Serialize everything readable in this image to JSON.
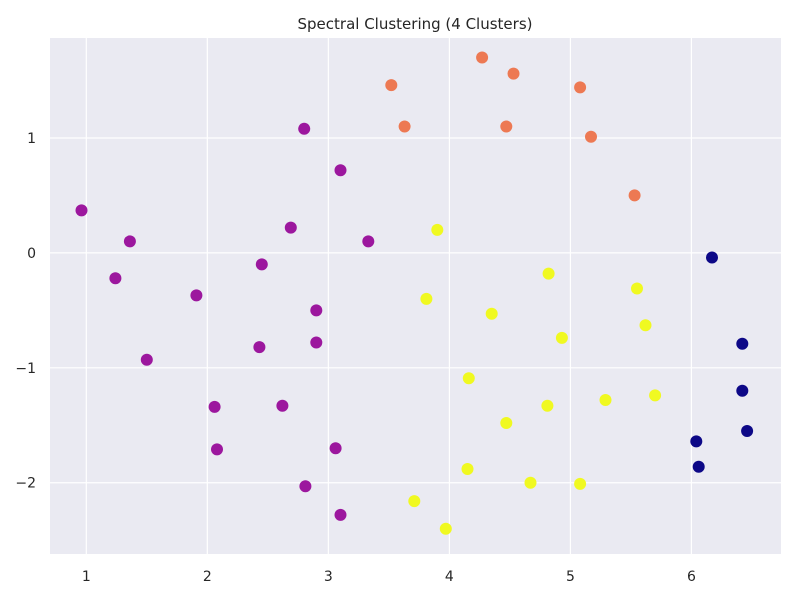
{
  "chart_data": {
    "type": "scatter",
    "title": "Spectral Clustering (4 Clusters)",
    "xlabel": "",
    "ylabel": "",
    "xlim": [
      0.7,
      6.74
    ],
    "ylim": [
      -2.62,
      1.87
    ],
    "x_ticks": [
      1,
      2,
      3,
      4,
      5,
      6
    ],
    "y_ticks": [
      1,
      0,
      -1,
      -2
    ],
    "grid": true,
    "legend": "none",
    "background": "#eaeaf2",
    "grid_color": "#ffffff",
    "series": [
      {
        "color": "#0d0887",
        "points": [
          [
            6.17,
            -0.04
          ],
          [
            6.42,
            -0.79
          ],
          [
            6.42,
            -1.2
          ],
          [
            6.46,
            -1.55
          ],
          [
            6.04,
            -1.64
          ],
          [
            6.06,
            -1.86
          ]
        ]
      },
      {
        "color": "#9c179e",
        "points": [
          [
            0.96,
            0.37
          ],
          [
            1.36,
            0.1
          ],
          [
            1.24,
            -0.22
          ],
          [
            1.5,
            -0.93
          ],
          [
            2.8,
            1.08
          ],
          [
            3.1,
            0.72
          ],
          [
            2.69,
            0.22
          ],
          [
            3.33,
            0.1
          ],
          [
            2.45,
            -0.1
          ],
          [
            1.91,
            -0.37
          ],
          [
            2.9,
            -0.5
          ],
          [
            2.43,
            -0.82
          ],
          [
            2.9,
            -0.78
          ],
          [
            2.06,
            -1.34
          ],
          [
            2.62,
            -1.33
          ],
          [
            2.08,
            -1.71
          ],
          [
            3.06,
            -1.7
          ],
          [
            2.81,
            -2.03
          ],
          [
            3.1,
            -2.28
          ]
        ]
      },
      {
        "color": "#ed7953",
        "points": [
          [
            3.52,
            1.46
          ],
          [
            3.63,
            1.1
          ],
          [
            4.27,
            1.7
          ],
          [
            4.53,
            1.56
          ],
          [
            4.47,
            1.1
          ],
          [
            5.08,
            1.44
          ],
          [
            5.17,
            1.01
          ],
          [
            5.53,
            0.5
          ]
        ]
      },
      {
        "color": "#f0f921",
        "points": [
          [
            3.9,
            0.2
          ],
          [
            4.82,
            -0.18
          ],
          [
            3.81,
            -0.4
          ],
          [
            4.35,
            -0.53
          ],
          [
            5.55,
            -0.31
          ],
          [
            5.62,
            -0.63
          ],
          [
            4.93,
            -0.74
          ],
          [
            4.16,
            -1.09
          ],
          [
            5.7,
            -1.24
          ],
          [
            5.29,
            -1.28
          ],
          [
            4.81,
            -1.33
          ],
          [
            4.47,
            -1.48
          ],
          [
            4.15,
            -1.88
          ],
          [
            4.67,
            -2.0
          ],
          [
            5.08,
            -2.01
          ],
          [
            3.71,
            -2.16
          ],
          [
            3.97,
            -2.4
          ]
        ]
      }
    ]
  }
}
